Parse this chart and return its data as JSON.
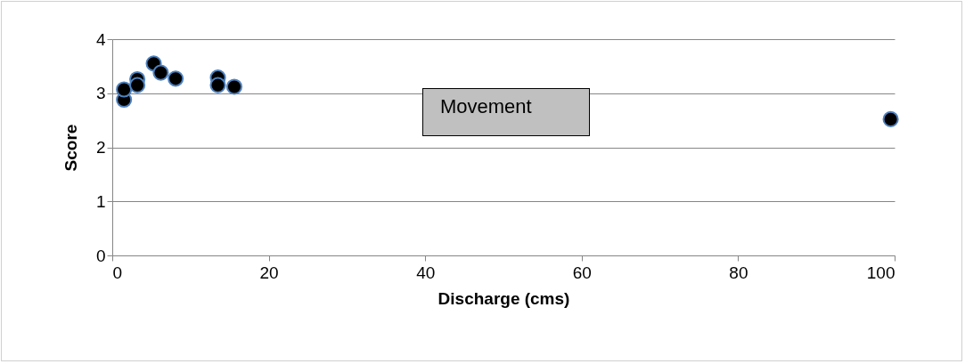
{
  "chart_data": {
    "type": "scatter",
    "xlabel": "Discharge (cms)",
    "ylabel": "Score",
    "annotations": [
      "Movement"
    ],
    "x": [
      1.5,
      1.5,
      3.2,
      3.2,
      5.3,
      6.2,
      8.1,
      13.5,
      13.5,
      15.6,
      99.5
    ],
    "series": [
      {
        "color": "#000000",
        "values": [
          2.88,
          3.07,
          3.26,
          3.15,
          3.55,
          3.38,
          3.27,
          3.29,
          3.15,
          3.12,
          2.52
        ]
      }
    ],
    "xlim": [
      0,
      100
    ],
    "xticks": [
      0,
      20,
      40,
      60,
      80,
      100
    ],
    "ylim": [
      0,
      4
    ],
    "yticks": [
      0,
      1,
      2,
      3,
      4
    ],
    "grid": "y",
    "legend": false,
    "marker": "circle"
  }
}
